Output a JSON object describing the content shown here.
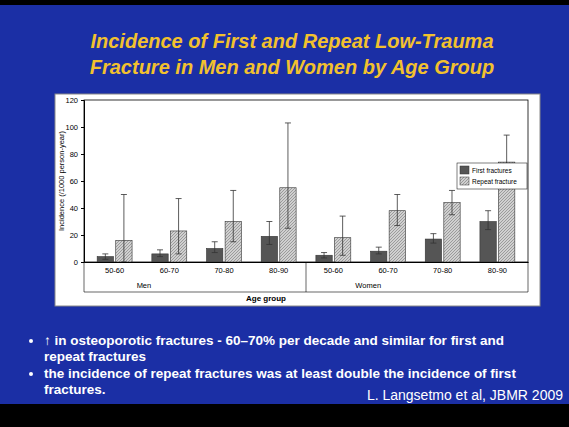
{
  "chart_data": {
    "type": "bar",
    "title": [
      "Incidence of First and Repeat Low-Trauma",
      "Fracture in Men and Women by Age Group"
    ],
    "categories": [
      "50-60",
      "60-70",
      "70-80",
      "80-90",
      "50-60",
      "60-70",
      "70-80",
      "80-90"
    ],
    "groups": [
      "Men",
      "Women"
    ],
    "x_label": "Age group",
    "y_label": "Incidence (/1000 person-year)",
    "series": [
      {
        "name": "First fractures",
        "color": "#555555",
        "values": [
          4,
          6,
          10,
          19,
          5,
          8,
          17,
          30
        ],
        "lower": [
          2,
          4,
          7,
          13,
          3,
          6,
          14,
          24
        ],
        "upper": [
          6,
          9,
          15,
          30,
          7,
          11,
          21,
          38
        ]
      },
      {
        "name": "Repeat fracture",
        "color": "#d0d0d0",
        "values": [
          16,
          23,
          30,
          55,
          18,
          38,
          44,
          74
        ],
        "lower": [
          0,
          6,
          15,
          25,
          5,
          27,
          35,
          55
        ],
        "upper": [
          50,
          47,
          53,
          103,
          34,
          50,
          53,
          94
        ]
      }
    ],
    "ylim": [
      0,
      120
    ],
    "yticks": [
      0,
      20,
      40,
      60,
      80,
      100,
      120
    ],
    "legend": "upper right",
    "grid": false,
    "bullets": [
      "↑ in osteoporotic fractures - 60–70% per decade and similar for first and repeat  fractures",
      "the incidence of repeat fractures was at least double the incidence of first fractures."
    ],
    "citation": "L. Langsetmo et  al, JBMR 2009"
  }
}
